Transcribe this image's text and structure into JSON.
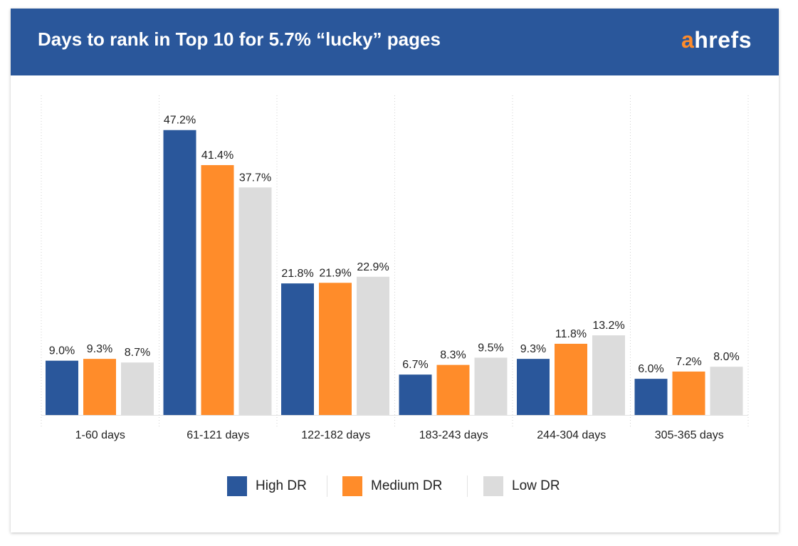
{
  "header": {
    "title": "Days to rank in Top 10 for 5.7% “lucky” pages",
    "logo_accent": "a",
    "logo_rest": "hrefs"
  },
  "colors": {
    "header_bg": "#2a579b",
    "logo_accent": "#ff8c2a",
    "high_dr": "#2a579b",
    "medium_dr": "#ff8c2a",
    "low_dr": "#dcdcdc"
  },
  "chart_data": {
    "type": "bar",
    "title": "Days to rank in Top 10 for 5.7% “lucky” pages",
    "xlabel": "",
    "ylabel": "",
    "ylim": [
      0,
      50
    ],
    "grid": false,
    "legend_position": "bottom-center",
    "value_suffix": "%",
    "categories": [
      "1-60 days",
      "61-121 days",
      "122-182 days",
      "183-243 days",
      "244-304 days",
      "305-365 days"
    ],
    "series": [
      {
        "name": "High DR",
        "color": "#2a579b",
        "values": [
          9.0,
          47.2,
          21.8,
          6.7,
          9.3,
          6.0
        ]
      },
      {
        "name": "Medium DR",
        "color": "#ff8c2a",
        "values": [
          9.3,
          41.4,
          21.9,
          8.3,
          11.8,
          7.2
        ]
      },
      {
        "name": "Low DR",
        "color": "#dcdcdc",
        "values": [
          8.7,
          37.7,
          22.9,
          9.5,
          13.2,
          8.0
        ]
      }
    ]
  }
}
